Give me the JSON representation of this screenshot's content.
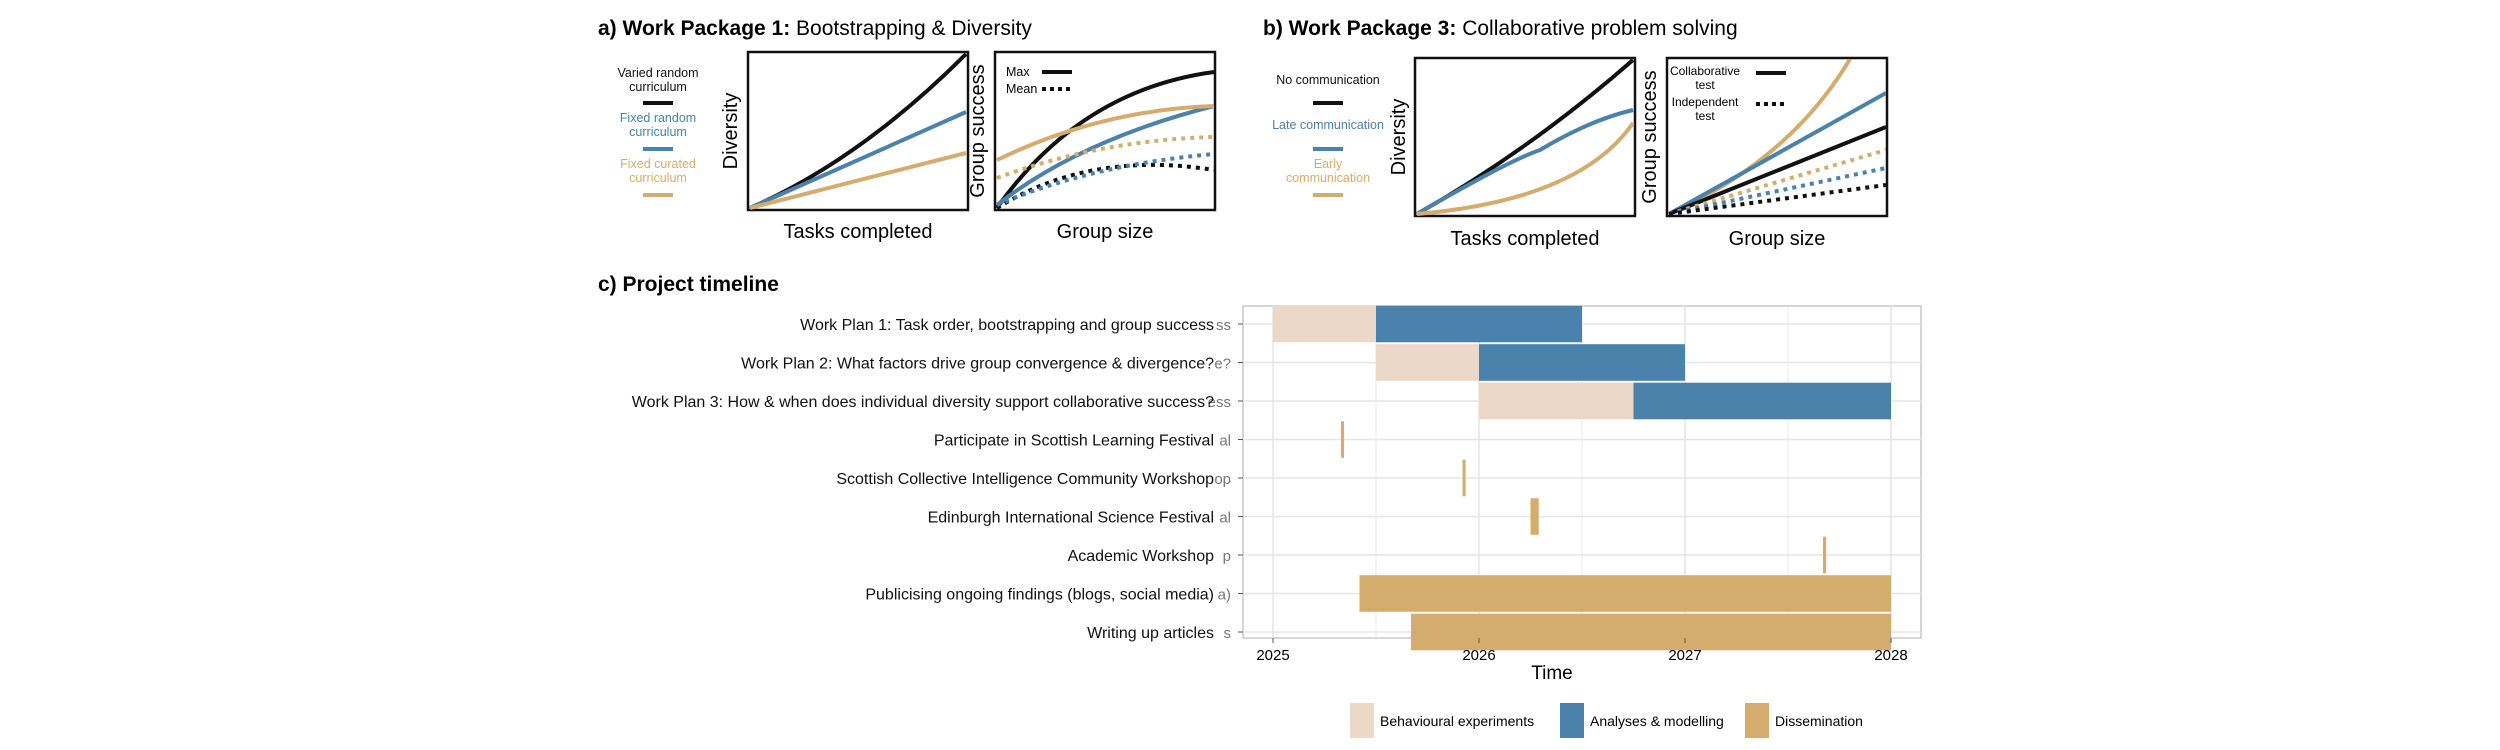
{
  "colors": {
    "black": "#111111",
    "blue": "#4a82ab",
    "tan": "#d4ac6e",
    "behavioural": "#ecd8c6",
    "analyses": "#4a82ab",
    "dissemination": "#d4ac6e",
    "grid": "#e6e6e6"
  },
  "panel_a": {
    "letter": "a) ",
    "bold": "Work Package 1:",
    "rest": " Bootstrapping & Diversity",
    "legend": [
      {
        "lines": [
          "Varied random",
          "curriculum"
        ],
        "color_key": "black"
      },
      {
        "lines": [
          "Fixed random",
          "curriculum"
        ],
        "color_key": "blue"
      },
      {
        "lines": [
          "Fixed curated",
          "curriculum"
        ],
        "color_key": "tan"
      }
    ],
    "left_plot": {
      "xlabel": "Tasks completed",
      "ylabel": "Diversity"
    },
    "right_plot": {
      "xlabel": "Group size",
      "ylabel": "Group success",
      "legend": [
        {
          "label": "Max",
          "style": "solid"
        },
        {
          "label": "Mean",
          "style": "dotted"
        }
      ]
    }
  },
  "panel_b": {
    "letter": "b) ",
    "bold": "Work Package 3:",
    "rest": " Collaborative problem solving",
    "legend": [
      {
        "lines": [
          "No communication"
        ],
        "color_key": "black"
      },
      {
        "lines": [
          "Late communication"
        ],
        "color_key": "blue"
      },
      {
        "lines": [
          "Early",
          "communication"
        ],
        "color_key": "tan"
      }
    ],
    "left_plot": {
      "xlabel": "Tasks completed",
      "ylabel": "Diversity"
    },
    "right_plot": {
      "xlabel": "Group size",
      "ylabel": "Group success",
      "legend": [
        {
          "lines": [
            "Collaborative",
            "test"
          ],
          "style": "solid"
        },
        {
          "lines": [
            "Independent",
            "test"
          ],
          "style": "dotted"
        }
      ]
    }
  },
  "panel_c": {
    "title": "c) Project timeline",
    "xlabel": "Time"
  },
  "chart_data": {
    "type": "gantt",
    "title": "c) Project timeline",
    "xlabel": "Time",
    "xlim": [
      2025,
      2028
    ],
    "xticks": [
      "2025",
      "2026",
      "2027",
      "2028"
    ],
    "grid": true,
    "legend_position": "bottom",
    "legend": [
      {
        "name": "Behavioural experiments",
        "color_key": "behavioural"
      },
      {
        "name": "Analyses & modelling",
        "color_key": "analyses"
      },
      {
        "name": "Dissemination",
        "color_key": "dissemination"
      }
    ],
    "tasks": [
      {
        "label": "Work Plan 1: Task order, bootstrapping and group success",
        "ghost": "ss",
        "segments": [
          {
            "start": 2025.0,
            "end": 2025.5,
            "type": "behavioural"
          },
          {
            "start": 2025.5,
            "end": 2026.5,
            "type": "analyses"
          }
        ]
      },
      {
        "label": "Work Plan 2: What factors drive group convergence & divergence?",
        "ghost": "e?",
        "segments": [
          {
            "start": 2025.5,
            "end": 2026.0,
            "type": "behavioural"
          },
          {
            "start": 2026.0,
            "end": 2027.0,
            "type": "analyses"
          }
        ]
      },
      {
        "label": "Work Plan 3: How & when does individual diversity support collaborative success?",
        "ghost": "ess",
        "segments": [
          {
            "start": 2026.0,
            "end": 2026.75,
            "type": "behavioural"
          },
          {
            "start": 2026.75,
            "end": 2028.0,
            "type": "analyses"
          }
        ]
      },
      {
        "label": "Participate in Scottish Learning Festival",
        "ghost": "al",
        "segments": [
          {
            "start": 2025.33,
            "end": 2025.345,
            "type": "dissemination"
          }
        ]
      },
      {
        "label": "Scottish Collective Intelligence Community Workshop",
        "ghost": "op",
        "segments": [
          {
            "start": 2025.92,
            "end": 2025.935,
            "type": "dissemination"
          }
        ]
      },
      {
        "label": "Edinburgh International Science Festival",
        "ghost": "al",
        "segments": [
          {
            "start": 2026.25,
            "end": 2026.29,
            "type": "dissemination"
          }
        ]
      },
      {
        "label": "Academic Workshop",
        "ghost": "p",
        "segments": [
          {
            "start": 2027.67,
            "end": 2027.685,
            "type": "dissemination"
          }
        ]
      },
      {
        "label": "Publicising ongoing findings (blogs, social media)",
        "ghost": "a)",
        "segments": [
          {
            "start": 2025.42,
            "end": 2028.0,
            "type": "dissemination"
          }
        ]
      },
      {
        "label": "Writing up articles",
        "ghost": "s",
        "segments": [
          {
            "start": 2025.67,
            "end": 2028.0,
            "type": "dissemination"
          }
        ]
      }
    ]
  }
}
